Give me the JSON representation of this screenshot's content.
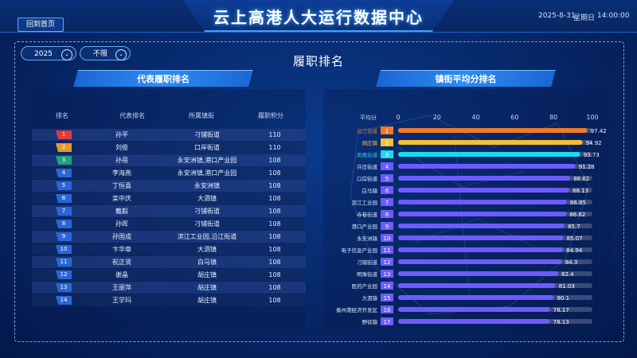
{
  "header": {
    "home_button": "回到首页",
    "title": "云上高港人大运行数据中心",
    "date": "2025-8-31",
    "weekday": "星期日",
    "time": "14:00:00"
  },
  "filters": {
    "year": "2025",
    "scope": "不限"
  },
  "section_title": "履职排名",
  "left_panel": {
    "title": "代表履职排名",
    "columns": [
      "排名",
      "代表排名",
      "所属镇街",
      "履职积分"
    ],
    "rows": [
      {
        "rank": "1",
        "name": "孙平",
        "town": "刁铺街道",
        "score": "110"
      },
      {
        "rank": "2",
        "name": "刘俊",
        "town": "口岸街道",
        "score": "110"
      },
      {
        "rank": "3",
        "name": "孙蓓",
        "town": "永安洲镇,港口产业园",
        "score": "108"
      },
      {
        "rank": "4",
        "name": "李海燕",
        "town": "永安洲镇,港口产业园",
        "score": "108"
      },
      {
        "rank": "5",
        "name": "丁恒喜",
        "town": "永安洲镇",
        "score": "108"
      },
      {
        "rank": "6",
        "name": "栾中庆",
        "town": "大泗镇",
        "score": "108"
      },
      {
        "rank": "7",
        "name": "戴毅",
        "town": "刁铺街道",
        "score": "108"
      },
      {
        "rank": "8",
        "name": "孙晖",
        "town": "刁铺街道",
        "score": "108"
      },
      {
        "rank": "9",
        "name": "孙国成",
        "town": "滨江工业园,沿江街道",
        "score": "108"
      },
      {
        "rank": "10",
        "name": "卞华章",
        "town": "大泗镇",
        "score": "108"
      },
      {
        "rank": "11",
        "name": "祝正贤",
        "town": "白马镇",
        "score": "108"
      },
      {
        "rank": "12",
        "name": "谢晶",
        "town": "胡庄镇",
        "score": "108"
      },
      {
        "rank": "13",
        "name": "王丽萍",
        "town": "胡庄镇",
        "score": "108"
      },
      {
        "rank": "14",
        "name": "王学玛",
        "town": "胡庄镇",
        "score": "108"
      }
    ]
  },
  "right_panel": {
    "title": "镇街平均分排名"
  },
  "colors": {
    "gold": "#f07a28",
    "yellow": "#f4c033",
    "cyan": "#1fd8ee",
    "purple": "#6d5bff",
    "rank1": "#e03a3a",
    "rank2": "#e69a2a",
    "rank3": "#1fa37a",
    "rank_other": "#2a66d6"
  },
  "chart_data": {
    "type": "bar",
    "orientation": "horizontal",
    "ylabel": "平均分",
    "xlim": [
      0,
      100
    ],
    "xticks": [
      0,
      20,
      40,
      60,
      80,
      100
    ],
    "categories": [
      "沿江街道",
      "胡庄镇",
      "凤凰街道",
      "许庄街道",
      "口岸街道",
      "白马镇",
      "滨江工业园",
      "寺巷街道",
      "港口产业园",
      "永安洲镇",
      "电子信息产业园",
      "刁铺街道",
      "明珠街道",
      "医药产业园",
      "大泗镇",
      "泰州港经济开发区",
      "野徐镇"
    ],
    "ranks": [
      "1",
      "2",
      "3",
      "4",
      "5",
      "6",
      "7",
      "8",
      "9",
      "10",
      "11",
      "12",
      "13",
      "14",
      "15",
      "16",
      "17"
    ],
    "values": [
      97.42,
      94.92,
      93.73,
      91.28,
      88.62,
      88.13,
      86.85,
      86.62,
      85.7,
      85.07,
      84.94,
      84.3,
      82.4,
      81.03,
      80.1,
      78.17,
      78.13
    ],
    "value_labels": [
      "97.42",
      "94.92",
      "93.73",
      "91.28",
      "88.62",
      "88.13",
      "86.85",
      "86.62",
      "85.7",
      "85.07",
      "84.94",
      "84.3",
      "82.4",
      "81.03",
      "80.1",
      "78.17",
      "78.13"
    ],
    "grid": false
  }
}
